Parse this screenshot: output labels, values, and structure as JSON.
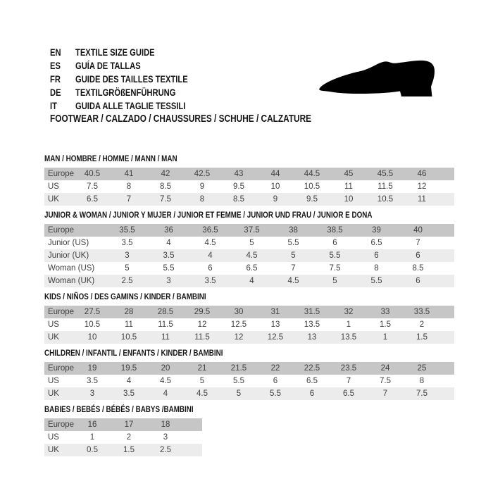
{
  "colors": {
    "header_row_bg": "#c6c6c6",
    "alt_row_bg": "#ececec",
    "table_text": "#3f3f3f",
    "heading_text": "#151515",
    "shoe": "#000000"
  },
  "header": {
    "languages": [
      {
        "code": "EN",
        "label": "TEXTILE SIZE GUIDE"
      },
      {
        "code": "ES",
        "label": "GUÍA DE TALLAS"
      },
      {
        "code": "FR",
        "label": "GUIDE DES TAILLES TEXTILE"
      },
      {
        "code": "DE",
        "label": "TEXTILGRÖßENFÜHRUNG"
      },
      {
        "code": "IT",
        "label": "GUIDA ALLE TAGLIE TESSILI"
      }
    ],
    "category_line": "FOOTWEAR / CALZADO / CHAUSSURES / SCHUHE / CALZATURE",
    "shoe_icon": "dress-shoe-silhouette"
  },
  "sections": [
    {
      "title": "MAN / HOMBRE / HOMME / MANN / MAN",
      "rows": [
        {
          "label": "Europe",
          "values": [
            "40.5",
            "41",
            "42",
            "42.5",
            "43",
            "44",
            "44.5",
            "45",
            "45.5",
            "46"
          ]
        },
        {
          "label": "US",
          "values": [
            "7.5",
            "8",
            "8.5",
            "9",
            "9.5",
            "10",
            "10.5",
            "11",
            "11.5",
            "12"
          ]
        },
        {
          "label": "UK",
          "values": [
            "6.5",
            "7",
            "7.5",
            "8",
            "8.5",
            "9",
            "9.5",
            "10",
            "10.5",
            "11"
          ]
        }
      ]
    },
    {
      "title": "JUNIOR & WOMAN / JUNIOR Y MUJER / JUNIOR ET FEMME / JUNIOR UND FRAU / JUNIOR E DONA",
      "rows": [
        {
          "label": "Europe",
          "values": [
            "35.5",
            "36",
            "36.5",
            "37.5",
            "38",
            "38.5",
            "39",
            "40"
          ]
        },
        {
          "label": "Junior (US)",
          "values": [
            "3.5",
            "4",
            "4.5",
            "5",
            "5.5",
            "6",
            "6.5",
            "7"
          ]
        },
        {
          "label": "Junior (UK)",
          "values": [
            "3",
            "3.5",
            "4",
            "4.5",
            "5",
            "5.5",
            "6",
            "6"
          ]
        },
        {
          "label": "Woman (US)",
          "values": [
            "5",
            "5.5",
            "6",
            "6.5",
            "7",
            "7.5",
            "8",
            "8.5"
          ]
        },
        {
          "label": "Woman (UK)",
          "values": [
            "2.5",
            "3",
            "3.5",
            "4",
            "4.5",
            "5",
            "5.5",
            "6"
          ]
        }
      ]
    },
    {
      "title": "KIDS / NIÑOS / DES GAMINS / KINDER / BAMBINI",
      "rows": [
        {
          "label": "Europe",
          "values": [
            "27.5",
            "28",
            "28.5",
            "29.5",
            "30",
            "31",
            "31.5",
            "32",
            "33",
            "33.5"
          ]
        },
        {
          "label": "US",
          "values": [
            "10.5",
            "11",
            "11.5",
            "12",
            "12.5",
            "13",
            "13.5",
            "1",
            "1.5",
            "2"
          ]
        },
        {
          "label": "UK",
          "values": [
            "10",
            "10.5",
            "11",
            "11.5",
            "12",
            "12.5",
            "13",
            "13.5",
            "1",
            "1.5"
          ]
        }
      ]
    },
    {
      "title": "CHILDREN / INFANTIL / ENFANTS / KINDER / BAMBINI",
      "rows": [
        {
          "label": "Europe",
          "values": [
            "19",
            "19.5",
            "20",
            "21",
            "21.5",
            "22",
            "22.5",
            "23.5",
            "24",
            "25"
          ]
        },
        {
          "label": "US",
          "values": [
            "3.5",
            "4",
            "4.5",
            "5",
            "5.5",
            "6",
            "6.5",
            "7",
            "7.5",
            "8"
          ]
        },
        {
          "label": "UK",
          "values": [
            "3",
            "3.5",
            "4",
            "4.5",
            "5",
            "5.5",
            "6",
            "6.5",
            "7",
            "7.5"
          ]
        }
      ]
    },
    {
      "title": "BABIES / BEBÉS / BÉBÉS / BABYS /BAMBINI",
      "rows": [
        {
          "label": "Europe",
          "values": [
            "16",
            "17",
            "18"
          ]
        },
        {
          "label": "US",
          "values": [
            "1",
            "2",
            "3"
          ]
        },
        {
          "label": "UK",
          "values": [
            "0.5",
            "1.5",
            "2.5"
          ]
        }
      ]
    }
  ]
}
